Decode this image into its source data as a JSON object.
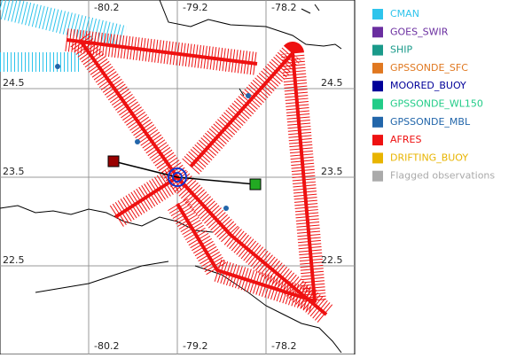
{
  "map": {
    "xlim": [
      -81.2,
      -77.2
    ],
    "ylim": [
      21.5,
      25.5
    ],
    "xticks": [
      -80.2,
      -79.2,
      -78.2
    ],
    "yticks": [
      24.5,
      23.5,
      22.5
    ],
    "legend": [
      {
        "name": "CMAN",
        "color": "#2ec4ec"
      },
      {
        "name": "GOES_SWIR",
        "color": "#6a2ea0"
      },
      {
        "name": "SHIP",
        "color": "#1a9a8a"
      },
      {
        "name": "GPSSONDE_SFC",
        "color": "#e07820"
      },
      {
        "name": "MOORED_BUOY",
        "color": "#000099"
      },
      {
        "name": "GPSSONDE_WL150",
        "color": "#22cc88"
      },
      {
        "name": "GPSSONDE_MBL",
        "color": "#2266aa"
      },
      {
        "name": "AFRES",
        "color": "#ee1111"
      },
      {
        "name": "DRIFTING_BUOY",
        "color": "#e8b400"
      },
      {
        "name": "Flagged observations",
        "color": "#aaaaaa"
      }
    ]
  }
}
